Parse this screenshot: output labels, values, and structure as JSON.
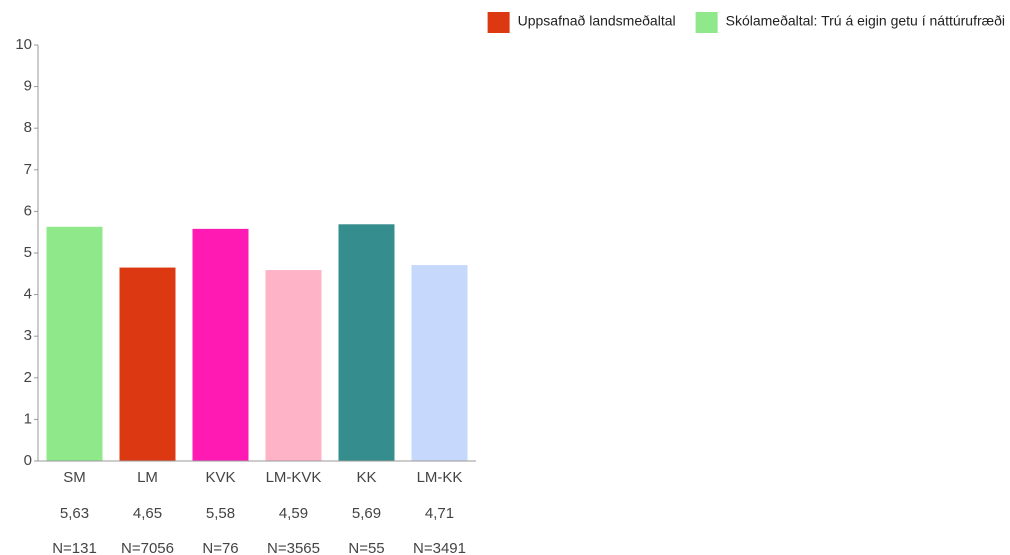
{
  "chart_data": {
    "type": "bar",
    "categories": [
      "SM",
      "LM",
      "KVK",
      "LM-KVK",
      "KK",
      "LM-KK"
    ],
    "values": [
      5.63,
      4.65,
      5.58,
      4.59,
      5.69,
      4.71
    ],
    "value_labels": [
      "5,63",
      "4,65",
      "5,58",
      "4,59",
      "5,69",
      "4,71"
    ],
    "count_labels": [
      "N=131",
      "N=7056",
      "N=76",
      "N=3565",
      "N=55",
      "N=3491"
    ],
    "colors": [
      "#8fe88a",
      "#dc3912",
      "#ff1ab4",
      "#ffb3c6",
      "#358d8d",
      "#c6d8fb"
    ],
    "legend": {
      "position": "top-right",
      "entries": [
        {
          "name": "Uppsafnað landsmeðaltal",
          "color": "#dc3912"
        },
        {
          "name": "Skólameðaltal: Trú á eigin getu í náttúrufræði",
          "color": "#8fe88a"
        }
      ]
    },
    "ylim": [
      0,
      10
    ],
    "yticks": [
      0,
      1,
      2,
      3,
      4,
      5,
      6,
      7,
      8,
      9,
      10
    ],
    "grid": false
  }
}
